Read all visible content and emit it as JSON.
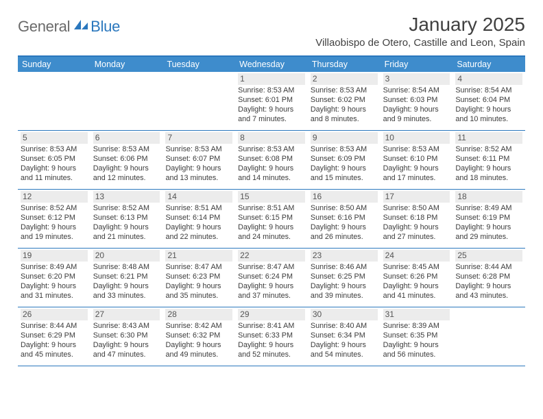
{
  "brand": {
    "text1": "General",
    "text2": "Blue"
  },
  "title": "January 2025",
  "location": "Villaobispo de Otero, Castille and Leon, Spain",
  "colors": {
    "header_bg": "#3e8ccc",
    "border": "#2a77bd",
    "daynum_bg": "#ececec",
    "text": "#333333",
    "logo_gray": "#6a6a6a",
    "logo_blue": "#2a77bd"
  },
  "dow": [
    "Sunday",
    "Monday",
    "Tuesday",
    "Wednesday",
    "Thursday",
    "Friday",
    "Saturday"
  ],
  "weeks": [
    [
      {
        "n": "",
        "sr": "",
        "ss": "",
        "dl": ""
      },
      {
        "n": "",
        "sr": "",
        "ss": "",
        "dl": ""
      },
      {
        "n": "",
        "sr": "",
        "ss": "",
        "dl": ""
      },
      {
        "n": "1",
        "sr": "Sunrise: 8:53 AM",
        "ss": "Sunset: 6:01 PM",
        "dl": "Daylight: 9 hours and 7 minutes."
      },
      {
        "n": "2",
        "sr": "Sunrise: 8:53 AM",
        "ss": "Sunset: 6:02 PM",
        "dl": "Daylight: 9 hours and 8 minutes."
      },
      {
        "n": "3",
        "sr": "Sunrise: 8:54 AM",
        "ss": "Sunset: 6:03 PM",
        "dl": "Daylight: 9 hours and 9 minutes."
      },
      {
        "n": "4",
        "sr": "Sunrise: 8:54 AM",
        "ss": "Sunset: 6:04 PM",
        "dl": "Daylight: 9 hours and 10 minutes."
      }
    ],
    [
      {
        "n": "5",
        "sr": "Sunrise: 8:53 AM",
        "ss": "Sunset: 6:05 PM",
        "dl": "Daylight: 9 hours and 11 minutes."
      },
      {
        "n": "6",
        "sr": "Sunrise: 8:53 AM",
        "ss": "Sunset: 6:06 PM",
        "dl": "Daylight: 9 hours and 12 minutes."
      },
      {
        "n": "7",
        "sr": "Sunrise: 8:53 AM",
        "ss": "Sunset: 6:07 PM",
        "dl": "Daylight: 9 hours and 13 minutes."
      },
      {
        "n": "8",
        "sr": "Sunrise: 8:53 AM",
        "ss": "Sunset: 6:08 PM",
        "dl": "Daylight: 9 hours and 14 minutes."
      },
      {
        "n": "9",
        "sr": "Sunrise: 8:53 AM",
        "ss": "Sunset: 6:09 PM",
        "dl": "Daylight: 9 hours and 15 minutes."
      },
      {
        "n": "10",
        "sr": "Sunrise: 8:53 AM",
        "ss": "Sunset: 6:10 PM",
        "dl": "Daylight: 9 hours and 17 minutes."
      },
      {
        "n": "11",
        "sr": "Sunrise: 8:52 AM",
        "ss": "Sunset: 6:11 PM",
        "dl": "Daylight: 9 hours and 18 minutes."
      }
    ],
    [
      {
        "n": "12",
        "sr": "Sunrise: 8:52 AM",
        "ss": "Sunset: 6:12 PM",
        "dl": "Daylight: 9 hours and 19 minutes."
      },
      {
        "n": "13",
        "sr": "Sunrise: 8:52 AM",
        "ss": "Sunset: 6:13 PM",
        "dl": "Daylight: 9 hours and 21 minutes."
      },
      {
        "n": "14",
        "sr": "Sunrise: 8:51 AM",
        "ss": "Sunset: 6:14 PM",
        "dl": "Daylight: 9 hours and 22 minutes."
      },
      {
        "n": "15",
        "sr": "Sunrise: 8:51 AM",
        "ss": "Sunset: 6:15 PM",
        "dl": "Daylight: 9 hours and 24 minutes."
      },
      {
        "n": "16",
        "sr": "Sunrise: 8:50 AM",
        "ss": "Sunset: 6:16 PM",
        "dl": "Daylight: 9 hours and 26 minutes."
      },
      {
        "n": "17",
        "sr": "Sunrise: 8:50 AM",
        "ss": "Sunset: 6:18 PM",
        "dl": "Daylight: 9 hours and 27 minutes."
      },
      {
        "n": "18",
        "sr": "Sunrise: 8:49 AM",
        "ss": "Sunset: 6:19 PM",
        "dl": "Daylight: 9 hours and 29 minutes."
      }
    ],
    [
      {
        "n": "19",
        "sr": "Sunrise: 8:49 AM",
        "ss": "Sunset: 6:20 PM",
        "dl": "Daylight: 9 hours and 31 minutes."
      },
      {
        "n": "20",
        "sr": "Sunrise: 8:48 AM",
        "ss": "Sunset: 6:21 PM",
        "dl": "Daylight: 9 hours and 33 minutes."
      },
      {
        "n": "21",
        "sr": "Sunrise: 8:47 AM",
        "ss": "Sunset: 6:23 PM",
        "dl": "Daylight: 9 hours and 35 minutes."
      },
      {
        "n": "22",
        "sr": "Sunrise: 8:47 AM",
        "ss": "Sunset: 6:24 PM",
        "dl": "Daylight: 9 hours and 37 minutes."
      },
      {
        "n": "23",
        "sr": "Sunrise: 8:46 AM",
        "ss": "Sunset: 6:25 PM",
        "dl": "Daylight: 9 hours and 39 minutes."
      },
      {
        "n": "24",
        "sr": "Sunrise: 8:45 AM",
        "ss": "Sunset: 6:26 PM",
        "dl": "Daylight: 9 hours and 41 minutes."
      },
      {
        "n": "25",
        "sr": "Sunrise: 8:44 AM",
        "ss": "Sunset: 6:28 PM",
        "dl": "Daylight: 9 hours and 43 minutes."
      }
    ],
    [
      {
        "n": "26",
        "sr": "Sunrise: 8:44 AM",
        "ss": "Sunset: 6:29 PM",
        "dl": "Daylight: 9 hours and 45 minutes."
      },
      {
        "n": "27",
        "sr": "Sunrise: 8:43 AM",
        "ss": "Sunset: 6:30 PM",
        "dl": "Daylight: 9 hours and 47 minutes."
      },
      {
        "n": "28",
        "sr": "Sunrise: 8:42 AM",
        "ss": "Sunset: 6:32 PM",
        "dl": "Daylight: 9 hours and 49 minutes."
      },
      {
        "n": "29",
        "sr": "Sunrise: 8:41 AM",
        "ss": "Sunset: 6:33 PM",
        "dl": "Daylight: 9 hours and 52 minutes."
      },
      {
        "n": "30",
        "sr": "Sunrise: 8:40 AM",
        "ss": "Sunset: 6:34 PM",
        "dl": "Daylight: 9 hours and 54 minutes."
      },
      {
        "n": "31",
        "sr": "Sunrise: 8:39 AM",
        "ss": "Sunset: 6:35 PM",
        "dl": "Daylight: 9 hours and 56 minutes."
      },
      {
        "n": "",
        "sr": "",
        "ss": "",
        "dl": ""
      }
    ]
  ]
}
